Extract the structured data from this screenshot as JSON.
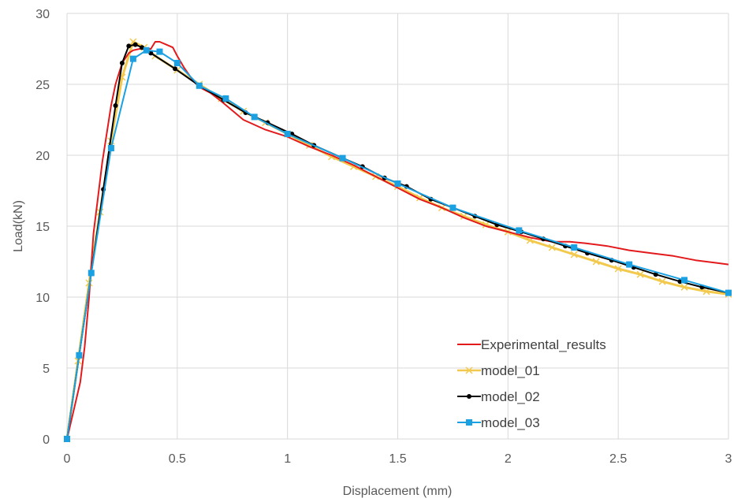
{
  "chart_data": {
    "type": "line",
    "xlabel": "Displacement (mm)",
    "ylabel": "Load(kN)",
    "xlim": [
      0,
      3
    ],
    "ylim": [
      0,
      30
    ],
    "xticks": [
      0,
      0.5,
      1,
      1.5,
      2,
      2.5,
      3
    ],
    "xtick_labels": [
      "0",
      "0.5",
      "1",
      "1.5",
      "2",
      "2.5",
      "3"
    ],
    "yticks": [
      0,
      5,
      10,
      15,
      20,
      25,
      30
    ],
    "ytick_labels": [
      "0",
      "5",
      "10",
      "15",
      "20",
      "25",
      "30"
    ],
    "grid": true,
    "legend_position": "lower-right",
    "series": [
      {
        "name": "Experimental_results",
        "color": "#e31a1c",
        "marker": "none",
        "x": [
          0,
          0.03,
          0.06,
          0.08,
          0.1,
          0.12,
          0.14,
          0.16,
          0.18,
          0.2,
          0.22,
          0.25,
          0.28,
          0.3,
          0.33,
          0.36,
          0.38,
          0.4,
          0.42,
          0.45,
          0.48,
          0.5,
          0.53,
          0.57,
          0.6,
          0.65,
          0.7,
          0.8,
          0.9,
          1.0,
          1.1,
          1.2,
          1.3,
          1.4,
          1.5,
          1.6,
          1.7,
          1.8,
          1.9,
          2.0,
          2.1,
          2.2,
          2.28,
          2.35,
          2.45,
          2.55,
          2.65,
          2.75,
          2.85,
          2.95,
          3.0
        ],
        "y": [
          0,
          2.0,
          4.0,
          6.5,
          10.0,
          14.5,
          17.0,
          19.5,
          21.5,
          23.5,
          25.0,
          26.5,
          27.2,
          27.4,
          27.5,
          27.5,
          27.5,
          28.0,
          28.0,
          27.8,
          27.6,
          27.0,
          26.2,
          25.3,
          24.8,
          24.4,
          23.8,
          22.5,
          21.8,
          21.3,
          20.6,
          20.0,
          19.3,
          18.5,
          17.7,
          16.9,
          16.3,
          15.6,
          15.0,
          14.6,
          14.2,
          13.9,
          13.9,
          13.8,
          13.6,
          13.3,
          13.1,
          12.9,
          12.6,
          12.4,
          12.3
        ]
      },
      {
        "name": "model_01",
        "color": "#f2c94c",
        "marker": "x",
        "x": [
          0,
          0.05,
          0.1,
          0.15,
          0.2,
          0.25,
          0.3,
          0.35,
          0.4,
          0.5,
          0.6,
          0.7,
          0.8,
          0.9,
          1.0,
          1.1,
          1.2,
          1.3,
          1.4,
          1.5,
          1.6,
          1.7,
          1.8,
          1.9,
          2.0,
          2.1,
          2.2,
          2.3,
          2.4,
          2.5,
          2.6,
          2.7,
          2.8,
          2.9,
          3.0
        ],
        "y": [
          0,
          5.5,
          11.0,
          16.0,
          21.0,
          25.5,
          28.0,
          27.6,
          27.0,
          26.0,
          25.0,
          24.0,
          23.1,
          22.3,
          21.5,
          20.7,
          19.9,
          19.2,
          18.5,
          17.8,
          17.0,
          16.3,
          15.7,
          15.1,
          14.6,
          14.0,
          13.5,
          13.0,
          12.5,
          12.0,
          11.6,
          11.1,
          10.7,
          10.4,
          10.2
        ]
      },
      {
        "name": "model_02",
        "color": "#000000",
        "marker": "circle",
        "x": [
          0,
          0.055,
          0.11,
          0.165,
          0.22,
          0.25,
          0.28,
          0.31,
          0.34,
          0.38,
          0.49,
          0.6,
          0.71,
          0.81,
          0.91,
          1.02,
          1.12,
          1.25,
          1.34,
          1.44,
          1.54,
          1.65,
          1.75,
          1.85,
          1.95,
          2.06,
          2.16,
          2.26,
          2.36,
          2.47,
          2.57,
          2.67,
          2.78,
          2.88,
          3.0
        ],
        "y": [
          0,
          5.9,
          11.7,
          17.6,
          23.5,
          26.5,
          27.7,
          27.8,
          27.6,
          27.2,
          26.1,
          24.9,
          23.9,
          23.0,
          22.3,
          21.5,
          20.7,
          19.8,
          19.2,
          18.4,
          17.8,
          16.9,
          16.3,
          15.7,
          15.1,
          14.6,
          14.1,
          13.6,
          13.1,
          12.6,
          12.1,
          11.6,
          11.1,
          10.7,
          10.3
        ]
      },
      {
        "name": "model_03",
        "color": "#1ba1e2",
        "marker": "square",
        "x": [
          0,
          0.055,
          0.11,
          0.2,
          0.3,
          0.36,
          0.42,
          0.5,
          0.6,
          0.72,
          0.85,
          1.0,
          1.25,
          1.5,
          1.75,
          2.05,
          2.3,
          2.55,
          2.8,
          3.0
        ],
        "y": [
          0,
          5.9,
          11.7,
          20.5,
          26.8,
          27.4,
          27.3,
          26.5,
          24.9,
          24.0,
          22.7,
          21.5,
          19.8,
          18.0,
          16.3,
          14.7,
          13.5,
          12.3,
          11.2,
          10.3
        ]
      }
    ]
  }
}
